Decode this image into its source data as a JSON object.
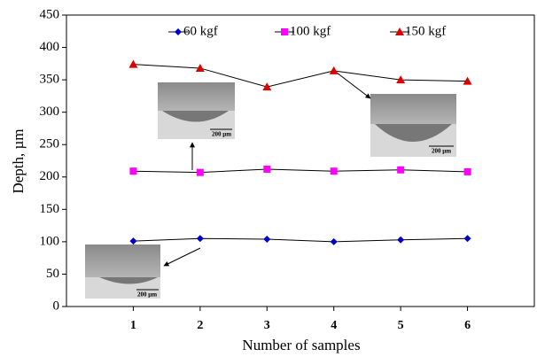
{
  "chart_data": {
    "type": "line",
    "xlabel": "Number of samples",
    "ylabel": "Depth, µm",
    "x": [
      1,
      2,
      3,
      4,
      5,
      6
    ],
    "xlim": [
      0,
      7
    ],
    "xticks": [
      1,
      2,
      3,
      4,
      5,
      6
    ],
    "ylim": [
      0,
      450
    ],
    "yticks": [
      0,
      50,
      100,
      150,
      200,
      250,
      300,
      350,
      400,
      450
    ],
    "series": [
      {
        "name": "60 kgf",
        "color": "#0000cc",
        "marker": "diamond",
        "values": [
          101,
          105,
          104,
          100,
          103,
          105
        ]
      },
      {
        "name": "100 kgf",
        "color": "#ff00ff",
        "marker": "square",
        "values": [
          209,
          207,
          212,
          209,
          211,
          208
        ]
      },
      {
        "name": "150 kgf",
        "color": "#dd0000",
        "marker": "triangle",
        "values": [
          374,
          368,
          339,
          364,
          350,
          348
        ]
      }
    ],
    "annotations": [
      "200 µm",
      "200 µm",
      "200 µm"
    ]
  }
}
